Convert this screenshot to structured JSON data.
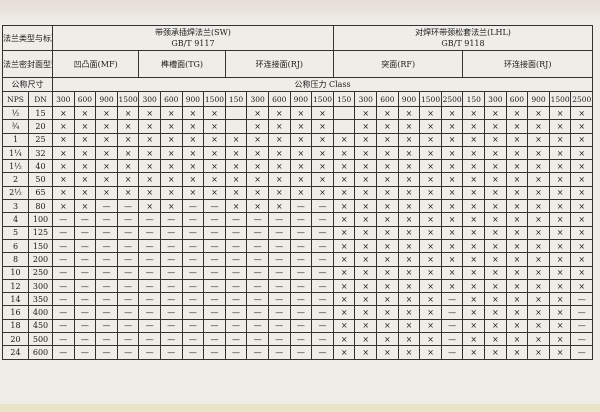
{
  "header": {
    "flange_type_label": "法兰类型与标准编号",
    "seal_face_label": "法兰密封面型式",
    "nominal_size_label": "公称尺寸",
    "pressure_class_label": "公称压力 Class",
    "nps_label": "NPS",
    "dn_label": "DN",
    "flange_types": [
      {
        "name": "带颈承插焊法兰(SW)",
        "standard": "GB/T 9117",
        "span": 13
      },
      {
        "name": "对焊环带颈松套法兰(LHL)",
        "standard": "GB/T 9118",
        "span": 12
      }
    ],
    "seal_faces": [
      {
        "name": "凹凸面(MF)",
        "span": 4
      },
      {
        "name": "榫槽面(TG)",
        "span": 4
      },
      {
        "name": "环连接面(RJ)",
        "span": 5
      },
      {
        "name": "突面(RF)",
        "span": 6
      },
      {
        "name": "环连接面(RJ)",
        "span": 6
      }
    ],
    "classes": [
      "300",
      "600",
      "900",
      "1500",
      "300",
      "600",
      "900",
      "1500",
      "150",
      "300",
      "600",
      "900",
      "1500",
      "150",
      "300",
      "600",
      "900",
      "1500",
      "2500",
      "150",
      "300",
      "600",
      "900",
      "1500",
      "2500"
    ]
  },
  "rows": [
    {
      "nps": "½",
      "dn": "15",
      "cells": [
        "×",
        "×",
        "×",
        "×",
        "×",
        "×",
        "×",
        "×",
        "",
        "×",
        "×",
        "×",
        "×",
        "",
        "×",
        "×",
        "×",
        "×",
        "×",
        "×",
        "×",
        "×",
        "×",
        "×",
        "×"
      ]
    },
    {
      "nps": "¾",
      "dn": "20",
      "cells": [
        "×",
        "×",
        "×",
        "×",
        "×",
        "×",
        "×",
        "×",
        "",
        "×",
        "×",
        "×",
        "×",
        "",
        "×",
        "×",
        "×",
        "×",
        "×",
        "×",
        "×",
        "×",
        "×",
        "×",
        "×"
      ]
    },
    {
      "nps": "1",
      "dn": "25",
      "cells": [
        "×",
        "×",
        "×",
        "×",
        "×",
        "×",
        "×",
        "×",
        "×",
        "×",
        "×",
        "×",
        "×",
        "×",
        "×",
        "×",
        "×",
        "×",
        "×",
        "×",
        "×",
        "×",
        "×",
        "×",
        "×"
      ]
    },
    {
      "nps": "1¼",
      "dn": "32",
      "cells": [
        "×",
        "×",
        "×",
        "×",
        "×",
        "×",
        "×",
        "×",
        "×",
        "×",
        "×",
        "×",
        "×",
        "×",
        "×",
        "×",
        "×",
        "×",
        "×",
        "×",
        "×",
        "×",
        "×",
        "×",
        "×"
      ]
    },
    {
      "nps": "1½",
      "dn": "40",
      "cells": [
        "×",
        "×",
        "×",
        "×",
        "×",
        "×",
        "×",
        "×",
        "×",
        "×",
        "×",
        "×",
        "×",
        "×",
        "×",
        "×",
        "×",
        "×",
        "×",
        "×",
        "×",
        "×",
        "×",
        "×",
        "×"
      ]
    },
    {
      "nps": "2",
      "dn": "50",
      "cells": [
        "×",
        "×",
        "×",
        "×",
        "×",
        "×",
        "×",
        "×",
        "×",
        "×",
        "×",
        "×",
        "×",
        "×",
        "×",
        "×",
        "×",
        "×",
        "×",
        "×",
        "×",
        "×",
        "×",
        "×",
        "×"
      ]
    },
    {
      "nps": "2½",
      "dn": "65",
      "cells": [
        "×",
        "×",
        "×",
        "×",
        "×",
        "×",
        "×",
        "×",
        "×",
        "×",
        "×",
        "×",
        "×",
        "×",
        "×",
        "×",
        "×",
        "×",
        "×",
        "×",
        "×",
        "×",
        "×",
        "×",
        "×"
      ]
    },
    {
      "nps": "3",
      "dn": "80",
      "cells": [
        "×",
        "×",
        "—",
        "—",
        "×",
        "×",
        "—",
        "—",
        "×",
        "×",
        "×",
        "—",
        "—",
        "×",
        "×",
        "×",
        "×",
        "×",
        "×",
        "×",
        "×",
        "×",
        "×",
        "×",
        "×"
      ]
    },
    {
      "nps": "4",
      "dn": "100",
      "cells": [
        "—",
        "—",
        "—",
        "—",
        "—",
        "—",
        "—",
        "—",
        "—",
        "—",
        "—",
        "—",
        "—",
        "×",
        "×",
        "×",
        "×",
        "×",
        "×",
        "×",
        "×",
        "×",
        "×",
        "×",
        "×"
      ]
    },
    {
      "nps": "5",
      "dn": "125",
      "cells": [
        "—",
        "—",
        "—",
        "—",
        "—",
        "—",
        "—",
        "—",
        "—",
        "—",
        "—",
        "—",
        "—",
        "×",
        "×",
        "×",
        "×",
        "×",
        "×",
        "×",
        "×",
        "×",
        "×",
        "×",
        "×"
      ]
    },
    {
      "nps": "6",
      "dn": "150",
      "cells": [
        "—",
        "—",
        "—",
        "—",
        "—",
        "—",
        "—",
        "—",
        "—",
        "—",
        "—",
        "—",
        "—",
        "×",
        "×",
        "×",
        "×",
        "×",
        "×",
        "×",
        "×",
        "×",
        "×",
        "×",
        "×"
      ]
    },
    {
      "nps": "8",
      "dn": "200",
      "cells": [
        "—",
        "—",
        "—",
        "—",
        "—",
        "—",
        "—",
        "—",
        "—",
        "—",
        "—",
        "—",
        "—",
        "×",
        "×",
        "×",
        "×",
        "×",
        "×",
        "×",
        "×",
        "×",
        "×",
        "×",
        "×"
      ]
    },
    {
      "nps": "10",
      "dn": "250",
      "cells": [
        "—",
        "—",
        "—",
        "—",
        "—",
        "—",
        "—",
        "—",
        "—",
        "—",
        "—",
        "—",
        "—",
        "×",
        "×",
        "×",
        "×",
        "×",
        "×",
        "×",
        "×",
        "×",
        "×",
        "×",
        "×"
      ]
    },
    {
      "nps": "12",
      "dn": "300",
      "cells": [
        "—",
        "—",
        "—",
        "—",
        "—",
        "—",
        "—",
        "—",
        "—",
        "—",
        "—",
        "—",
        "—",
        "×",
        "×",
        "×",
        "×",
        "×",
        "×",
        "×",
        "×",
        "×",
        "×",
        "×",
        "×"
      ]
    },
    {
      "nps": "14",
      "dn": "350",
      "cells": [
        "—",
        "—",
        "—",
        "—",
        "—",
        "—",
        "—",
        "—",
        "—",
        "—",
        "—",
        "—",
        "—",
        "×",
        "×",
        "×",
        "×",
        "×",
        "—",
        "×",
        "×",
        "×",
        "×",
        "×",
        "—"
      ]
    },
    {
      "nps": "16",
      "dn": "400",
      "cells": [
        "—",
        "—",
        "—",
        "—",
        "—",
        "—",
        "—",
        "—",
        "—",
        "—",
        "—",
        "—",
        "—",
        "×",
        "×",
        "×",
        "×",
        "×",
        "—",
        "×",
        "×",
        "×",
        "×",
        "×",
        "—"
      ]
    },
    {
      "nps": "18",
      "dn": "450",
      "cells": [
        "—",
        "—",
        "—",
        "—",
        "—",
        "—",
        "—",
        "—",
        "—",
        "—",
        "—",
        "—",
        "—",
        "×",
        "×",
        "×",
        "×",
        "×",
        "—",
        "×",
        "×",
        "×",
        "×",
        "×",
        "—"
      ]
    },
    {
      "nps": "20",
      "dn": "500",
      "cells": [
        "—",
        "—",
        "—",
        "—",
        "—",
        "—",
        "—",
        "—",
        "—",
        "—",
        "—",
        "—",
        "—",
        "×",
        "×",
        "×",
        "×",
        "×",
        "—",
        "×",
        "×",
        "×",
        "×",
        "×",
        "—"
      ]
    },
    {
      "nps": "24",
      "dn": "600",
      "cells": [
        "—",
        "—",
        "—",
        "—",
        "—",
        "—",
        "—",
        "—",
        "—",
        "—",
        "—",
        "—",
        "—",
        "×",
        "×",
        "×",
        "×",
        "×",
        "—",
        "×",
        "×",
        "×",
        "×",
        "×",
        "—"
      ]
    }
  ]
}
